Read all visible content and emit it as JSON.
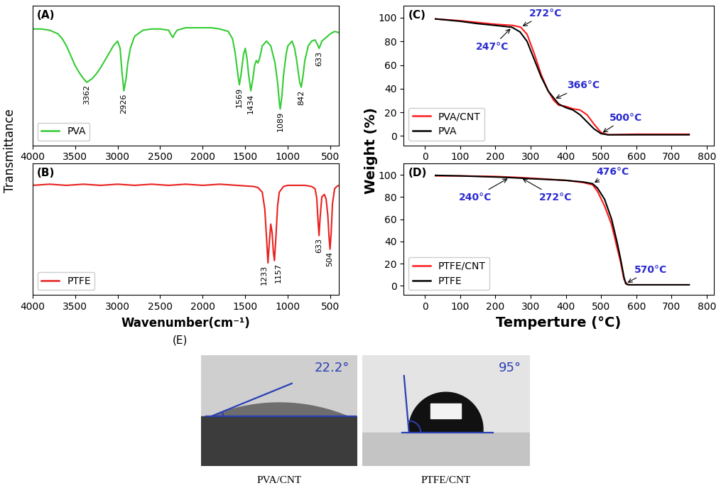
{
  "chart_data": [
    {
      "type": "line",
      "panel_label": "(A)",
      "xlim": [
        4000,
        400
      ],
      "xticks": [
        4000,
        3500,
        3000,
        2500,
        2000,
        1500,
        1000,
        500
      ],
      "ylim": [
        0,
        115
      ],
      "tick_labels": "x",
      "legend": "lower left",
      "series": [
        {
          "name": "PVA",
          "color": "#33cc33",
          "x": [
            4000,
            3900,
            3800,
            3700,
            3650,
            3600,
            3550,
            3500,
            3450,
            3400,
            3362,
            3300,
            3250,
            3200,
            3150,
            3100,
            3050,
            3000,
            2970,
            2950,
            2926,
            2900,
            2880,
            2850,
            2800,
            2700,
            2600,
            2500,
            2400,
            2370,
            2350,
            2330,
            2300,
            2200,
            2100,
            2000,
            1900,
            1800,
            1750,
            1700,
            1650,
            1620,
            1600,
            1580,
            1569,
            1550,
            1520,
            1500,
            1480,
            1460,
            1434,
            1410,
            1390,
            1370,
            1350,
            1330,
            1300,
            1250,
            1200,
            1150,
            1120,
            1100,
            1089,
            1070,
            1050,
            1020,
            1000,
            950,
            920,
            900,
            880,
            860,
            842,
            820,
            800,
            760,
            720,
            680,
            650,
            633,
            615,
            600,
            550,
            500,
            450,
            400
          ],
          "values": [
            96,
            96,
            95,
            92,
            88,
            82,
            74,
            66,
            60,
            55,
            52,
            55,
            59,
            64,
            70,
            76,
            82,
            86,
            80,
            62,
            45,
            55,
            68,
            80,
            90,
            95,
            96,
            96,
            95,
            91,
            89,
            92,
            95,
            97,
            97,
            97,
            97,
            96,
            95,
            94,
            88,
            77,
            66,
            55,
            50,
            58,
            75,
            80,
            72,
            58,
            45,
            55,
            66,
            70,
            68,
            72,
            82,
            86,
            82,
            68,
            52,
            36,
            30,
            40,
            58,
            75,
            82,
            86,
            80,
            72,
            62,
            52,
            48,
            58,
            70,
            82,
            86,
            87,
            83,
            80,
            83,
            86,
            89,
            92,
            94,
            93
          ]
        }
      ],
      "peaks": [
        3362,
        2926,
        1569,
        1434,
        1089,
        842,
        633
      ]
    },
    {
      "type": "line",
      "panel_label": "(B)",
      "xlim": [
        4000,
        400
      ],
      "xticks": [
        4000,
        3500,
        3000,
        2500,
        2000,
        1500,
        1000,
        500
      ],
      "ylim": [
        0,
        115
      ],
      "tick_labels": "x",
      "legend": "lower left",
      "series": [
        {
          "name": "PTFE",
          "color": "#e8211f",
          "x": [
            4000,
            3800,
            3600,
            3400,
            3200,
            3000,
            2800,
            2600,
            2400,
            2200,
            2000,
            1800,
            1600,
            1400,
            1350,
            1300,
            1270,
            1250,
            1233,
            1215,
            1200,
            1185,
            1170,
            1157,
            1140,
            1120,
            1100,
            1050,
            1000,
            900,
            800,
            720,
            680,
            660,
            645,
            633,
            620,
            600,
            570,
            550,
            530,
            515,
            504,
            490,
            475,
            450,
            425,
            400
          ],
          "values": [
            96,
            97,
            96,
            97,
            96,
            97,
            96,
            97,
            96,
            97,
            96,
            97,
            96,
            95,
            94,
            90,
            75,
            50,
            28,
            48,
            62,
            55,
            38,
            30,
            50,
            78,
            90,
            95,
            96,
            96,
            96,
            95,
            93,
            85,
            65,
            52,
            68,
            86,
            88,
            84,
            70,
            50,
            40,
            55,
            80,
            93,
            95,
            96
          ]
        }
      ],
      "peaks": [
        1233,
        1157,
        633,
        504
      ]
    },
    {
      "type": "line",
      "panel_label": "(C)",
      "xlim": [
        -60,
        820
      ],
      "xticks": [
        0,
        100,
        200,
        300,
        400,
        500,
        600,
        700,
        800
      ],
      "ylim": [
        -8,
        110
      ],
      "yticks": [
        0,
        20,
        40,
        60,
        80,
        100
      ],
      "legend": "lower left",
      "series": [
        {
          "name": "PVA/CNT",
          "color": "#ff1a1a",
          "x": [
            30,
            100,
            150,
            200,
            250,
            272,
            290,
            310,
            330,
            350,
            366,
            380,
            400,
            420,
            440,
            460,
            480,
            500,
            520,
            600,
            750
          ],
          "values": [
            99,
            97.5,
            96,
            94.5,
            93.5,
            92,
            86,
            70,
            52,
            38,
            30,
            26,
            25,
            23,
            22,
            18,
            10,
            3,
            1,
            1.5,
            1.5
          ]
        },
        {
          "name": "PVA",
          "color": "#000000",
          "x": [
            30,
            100,
            150,
            200,
            247,
            270,
            290,
            310,
            330,
            350,
            366,
            380,
            400,
            420,
            440,
            460,
            480,
            500,
            520,
            600,
            750
          ],
          "values": [
            99,
            97,
            95,
            93.5,
            92,
            88,
            80,
            65,
            50,
            38,
            32,
            27,
            24,
            22,
            18,
            12,
            6,
            2,
            1,
            1,
            1
          ]
        }
      ],
      "annotations": [
        {
          "text": "272°C",
          "x": 272,
          "y": 92
        },
        {
          "text": "247°C",
          "x": 247,
          "y": 92
        },
        {
          "text": "366°C",
          "x": 366,
          "y": 31
        },
        {
          "text": "500°C",
          "x": 500,
          "y": 2
        }
      ]
    },
    {
      "type": "line",
      "panel_label": "(D)",
      "xlim": [
        -60,
        820
      ],
      "xticks": [
        0,
        100,
        200,
        300,
        400,
        500,
        600,
        700,
        800
      ],
      "ylim": [
        -8,
        110
      ],
      "yticks": [
        0,
        20,
        40,
        60,
        80,
        100
      ],
      "legend": "lower left",
      "series": [
        {
          "name": "PTFE/CNT",
          "color": "#ff1a1a",
          "x": [
            30,
            100,
            200,
            272,
            350,
            400,
            450,
            476,
            490,
            510,
            530,
            545,
            555,
            565,
            575,
            600,
            750
          ],
          "values": [
            99,
            99,
            98.5,
            97.5,
            96,
            95,
            93,
            91,
            85,
            72,
            55,
            35,
            22,
            6,
            1,
            1,
            1
          ]
        },
        {
          "name": "PTFE",
          "color": "#000000",
          "x": [
            30,
            100,
            200,
            240,
            300,
            400,
            450,
            476,
            490,
            510,
            530,
            545,
            555,
            565,
            570,
            580,
            750
          ],
          "values": [
            99.5,
            99,
            98,
            97.5,
            96.5,
            95,
            93.5,
            92,
            88,
            78,
            60,
            40,
            25,
            8,
            2,
            1,
            1
          ]
        }
      ],
      "annotations": [
        {
          "text": "272°C",
          "x": 272,
          "y": 97.5
        },
        {
          "text": "240°C",
          "x": 240,
          "y": 97.5
        },
        {
          "text": "476°C",
          "x": 476,
          "y": 92
        },
        {
          "text": "570°C",
          "x": 570,
          "y": 2
        }
      ]
    }
  ],
  "axis_labels": {
    "spectra_y": "Transmittance",
    "spectra_x": "Wavenumber(cm⁻¹)",
    "tga_y": "Weight (%)",
    "tga_x": "Temperture (°C)"
  },
  "contact_angle": {
    "panel_label": "(E)",
    "images": [
      {
        "caption": "PVA/CNT",
        "angle": 22.2,
        "angle_label": "22.2°"
      },
      {
        "caption": "PTFE/CNT",
        "angle": 95,
        "angle_label": "95°"
      }
    ]
  }
}
